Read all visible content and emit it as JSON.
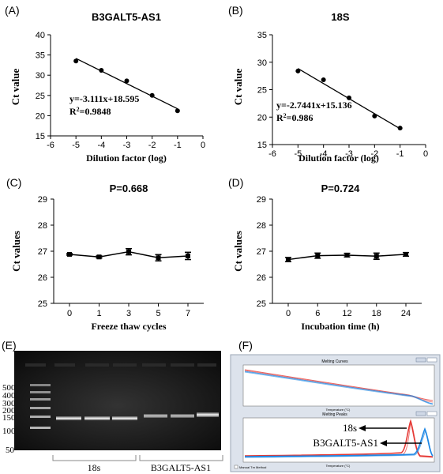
{
  "panels": {
    "A": {
      "letter": "(A)"
    },
    "B": {
      "letter": "(B)"
    },
    "C": {
      "letter": "(C)"
    },
    "D": {
      "letter": "(D)"
    },
    "E": {
      "letter": "(E)"
    },
    "F": {
      "letter": "(F)"
    }
  },
  "chart_data": [
    {
      "id": "A",
      "type": "scatter",
      "title": "B3GALT5-AS1",
      "xlabel": "Dilution factor (log)",
      "ylabel": "Ct value",
      "xlim": [
        -6,
        0
      ],
      "ylim": [
        15,
        40
      ],
      "xticks": [
        "-6",
        "-5",
        "-4",
        "-3",
        "-2",
        "-1",
        "0"
      ],
      "yticks": [
        "15",
        "20",
        "25",
        "30",
        "35",
        "40"
      ],
      "x": [
        -5,
        -4,
        -3,
        -2,
        -1
      ],
      "y": [
        33.5,
        31.2,
        28.6,
        25.0,
        21.2
      ],
      "fit": {
        "slope": -3.111,
        "intercept": 18.595
      },
      "equation": "y=-3.111x+18.595",
      "r2_label": "R",
      "r2_value": "=0.9848"
    },
    {
      "id": "B",
      "type": "scatter",
      "title": "18S",
      "xlabel": "Dilution factor (log)",
      "ylabel": "Ct value",
      "xlim": [
        -6,
        0
      ],
      "ylim": [
        15,
        35
      ],
      "xticks": [
        "-6",
        "-5",
        "-4",
        "-3",
        "-2",
        "-1",
        "0"
      ],
      "yticks": [
        "15",
        "20",
        "25",
        "30",
        "35"
      ],
      "x": [
        -5,
        -4,
        -3,
        -2,
        -1
      ],
      "y": [
        28.4,
        26.8,
        23.5,
        20.2,
        18.0
      ],
      "fit": {
        "slope": -2.7441,
        "intercept": 15.136
      },
      "equation": "y=-2.7441x+15.136",
      "r2_label": "R",
      "r2_value": "=0.986"
    },
    {
      "id": "C",
      "type": "line",
      "title": "P=0.668",
      "xlabel": "Freeze thaw cycles",
      "ylabel": "Ct values",
      "ylim": [
        25,
        29
      ],
      "categories": [
        "0",
        "1",
        "3",
        "5",
        "7"
      ],
      "yticks": [
        "25",
        "26",
        "27",
        "28",
        "29"
      ],
      "values": [
        26.88,
        26.78,
        26.98,
        26.75,
        26.82
      ],
      "errors": [
        0.03,
        0.04,
        0.12,
        0.12,
        0.14
      ]
    },
    {
      "id": "D",
      "type": "line",
      "title": "P=0.724",
      "xlabel": "Incubation time (h)",
      "ylabel": "Ct values",
      "ylim": [
        25,
        29
      ],
      "categories": [
        "0",
        "6",
        "12",
        "18",
        "24"
      ],
      "yticks": [
        "25",
        "26",
        "27",
        "28",
        "29"
      ],
      "values": [
        26.68,
        26.83,
        26.85,
        26.81,
        26.88
      ],
      "errors": [
        0.08,
        0.1,
        0.07,
        0.12,
        0.07
      ]
    }
  ],
  "gel": {
    "ladder_labels": [
      "500",
      "400",
      "300",
      "200",
      "150",
      "100",
      "50"
    ],
    "group1_label": "18s",
    "group2_label": "B3GALT5-AS1"
  },
  "melt": {
    "top_title": "Melting Curves",
    "bottom_title": "Melting Peaks",
    "x_axis_label": "Temperature (°C)",
    "checkbox_label": "Manual Tm Method",
    "arrow_label_1": "18s",
    "arrow_label_2": "B3GALT5-AS1"
  }
}
